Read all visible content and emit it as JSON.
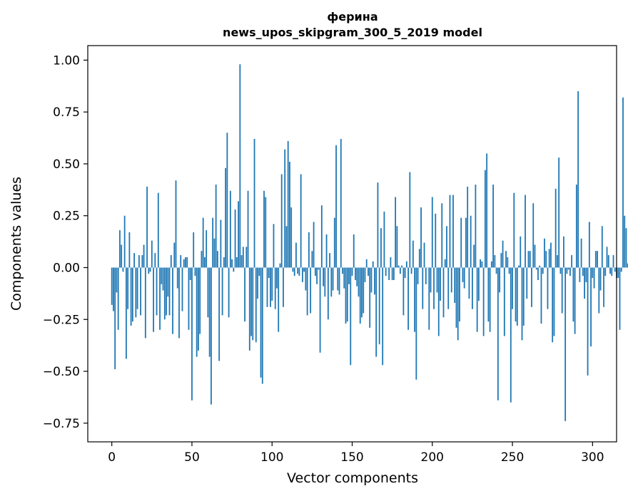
{
  "chart_data": {
    "type": "bar",
    "title": "ферина",
    "subtitle": "news_upos_skipgram_300_5_2019 model",
    "xlabel": "Vector components",
    "ylabel": "Components values",
    "xlim": [
      -15,
      315
    ],
    "ylim": [
      -0.84,
      1.07
    ],
    "xticks": [
      0,
      50,
      100,
      150,
      200,
      250,
      300
    ],
    "yticks": [
      -0.75,
      -0.5,
      -0.25,
      0.0,
      0.25,
      0.5,
      0.75,
      1.0
    ],
    "ytick_labels": [
      "−0.75",
      "−0.50",
      "−0.25",
      "0.00",
      "0.25",
      "0.50",
      "0.75",
      "1.00"
    ],
    "bar_color": "#1f77b4",
    "grid": false,
    "x_start": 0,
    "values": [
      -0.18,
      -0.21,
      -0.49,
      -0.12,
      -0.3,
      0.18,
      0.11,
      -0.02,
      0.25,
      -0.44,
      -0.2,
      0.17,
      -0.28,
      -0.26,
      0.07,
      -0.24,
      -0.2,
      0.06,
      -0.23,
      0.06,
      0.11,
      -0.34,
      0.39,
      -0.03,
      -0.02,
      0.13,
      -0.31,
      0.07,
      -0.23,
      0.36,
      -0.3,
      -0.08,
      -0.11,
      -0.25,
      -0.23,
      -0.14,
      -0.23,
      0.06,
      -0.32,
      0.12,
      0.42,
      -0.1,
      -0.34,
      0.06,
      -0.21,
      0.04,
      0.05,
      0.05,
      -0.3,
      -0.06,
      -0.64,
      0.17,
      -0.04,
      -0.43,
      -0.4,
      -0.32,
      0.08,
      0.24,
      0.05,
      0.18,
      -0.24,
      -0.43,
      -0.66,
      0.24,
      0.14,
      0.4,
      0.08,
      -0.45,
      0.23,
      -0.23,
      0.05,
      0.48,
      0.65,
      -0.24,
      0.37,
      0.04,
      -0.02,
      0.28,
      0.05,
      0.32,
      0.98,
      0.06,
      0.1,
      -0.26,
      0.1,
      0.37,
      -0.4,
      -0.33,
      -0.35,
      0.62,
      -0.36,
      -0.15,
      -0.04,
      -0.53,
      -0.56,
      0.37,
      0.34,
      -0.19,
      -0.05,
      -0.19,
      -0.16,
      0.21,
      -0.2,
      -0.1,
      -0.31,
      0.02,
      0.45,
      -0.19,
      0.57,
      0.2,
      0.61,
      0.51,
      0.29,
      -0.02,
      -0.04,
      0.12,
      -0.03,
      -0.04,
      0.45,
      -0.07,
      -0.02,
      -0.11,
      -0.23,
      0.17,
      -0.22,
      0.08,
      0.22,
      -0.04,
      -0.08,
      -0.01,
      -0.41,
      0.3,
      -0.09,
      -0.14,
      0.16,
      -0.25,
      0.07,
      -0.14,
      -0.11,
      0.24,
      0.59,
      -0.11,
      -0.13,
      0.62,
      -0.03,
      -0.1,
      -0.27,
      -0.26,
      -0.08,
      -0.47,
      -0.04,
      0.16,
      -0.06,
      -0.09,
      -0.14,
      -0.27,
      -0.24,
      -0.22,
      -0.07,
      0.04,
      -0.04,
      -0.29,
      -0.12,
      0.03,
      -0.13,
      -0.43,
      0.41,
      -0.37,
      0.19,
      -0.47,
      0.27,
      -0.04,
      0.0,
      -0.06,
      0.05,
      -0.06,
      -0.06,
      0.34,
      0.2,
      0.01,
      -0.03,
      0.01,
      -0.23,
      -0.05,
      0.03,
      -0.3,
      0.46,
      -0.03,
      0.13,
      -0.31,
      -0.54,
      -0.08,
      0.09,
      0.29,
      -0.2,
      0.12,
      -0.08,
      0.0,
      -0.3,
      -0.12,
      0.34,
      -0.2,
      0.26,
      -0.12,
      -0.33,
      -0.16,
      0.31,
      -0.24,
      0.04,
      0.2,
      -0.2,
      0.35,
      -0.12,
      0.35,
      -0.17,
      -0.29,
      -0.35,
      -0.26,
      0.24,
      -0.07,
      -0.1,
      0.24,
      0.39,
      -0.15,
      0.25,
      -0.2,
      0.11,
      0.4,
      -0.31,
      -0.16,
      0.04,
      0.03,
      -0.33,
      0.47,
      0.55,
      -0.26,
      -0.31,
      0.03,
      0.4,
      0.06,
      -0.03,
      -0.64,
      -0.12,
      0.07,
      0.13,
      -0.33,
      0.08,
      0.05,
      -0.03,
      -0.65,
      -0.2,
      0.36,
      -0.26,
      -0.28,
      0.01,
      0.15,
      -0.35,
      -0.28,
      0.35,
      -0.15,
      0.08,
      0.08,
      -0.19,
      0.31,
      0.11,
      -0.01,
      -0.06,
      0.01,
      -0.27,
      -0.03,
      0.14,
      0.08,
      -0.2,
      0.09,
      0.12,
      -0.36,
      -0.33,
      0.38,
      0.06,
      0.53,
      -0.03,
      -0.22,
      0.15,
      -0.74,
      -0.03,
      -0.01,
      -0.04,
      0.06,
      -0.26,
      -0.32,
      0.4,
      0.85,
      -0.07,
      0.14,
      -0.04,
      -0.15,
      -0.07,
      -0.52,
      0.22,
      -0.38,
      -0.05,
      -0.1,
      0.08,
      0.08,
      -0.22,
      -0.11,
      0.2,
      -0.19,
      -0.04,
      0.1,
      0.06,
      -0.03,
      -0.04,
      0.06,
      -0.02,
      -0.05,
      -0.05,
      -0.3,
      -0.02,
      0.82,
      0.25,
      0.19,
      0.02
    ]
  }
}
